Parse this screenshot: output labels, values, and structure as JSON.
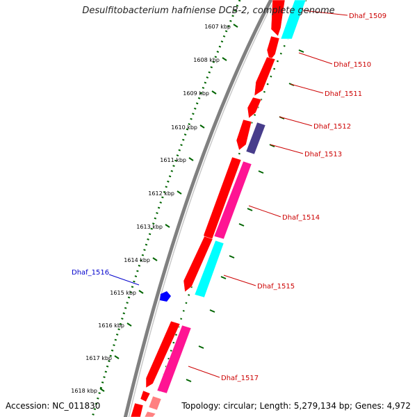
{
  "title": "Desulfitobacterium hafniense DCB-2, complete genome",
  "footer": {
    "accession": "Accession: NC_011830",
    "topology": "Topology: circular; Length: 5,279,134 bp; Genes: 4,972"
  },
  "colors": {
    "backbone": "#808080",
    "ruler": "#006400",
    "gene_red": "#ff0000",
    "gene_cyan": "#00ffff",
    "gene_magenta": "#ff1493",
    "gene_slate": "#483d8b",
    "gene_pink": "#ff8080",
    "gene_blue": "#0000ff",
    "label_red": "#cc0000",
    "label_blue": "#0000cc"
  },
  "ruler_labels": [
    "1607 kbp",
    "1608 kbp",
    "1609 kbp",
    "1610 kbp",
    "1611 kbp",
    "1612 kbp",
    "1613 kbp",
    "1614 kbp",
    "1615 kbp",
    "1616 kbp",
    "1617 kbp",
    "1618 kbp"
  ],
  "gene_labels": [
    {
      "text": "Dhaf_1509",
      "color": "red"
    },
    {
      "text": "Dhaf_1510",
      "color": "red"
    },
    {
      "text": "Dhaf_1511",
      "color": "red"
    },
    {
      "text": "Dhaf_1512",
      "color": "red"
    },
    {
      "text": "Dhaf_1513",
      "color": "red"
    },
    {
      "text": "Dhaf_1514",
      "color": "red"
    },
    {
      "text": "Dhaf_1515",
      "color": "red"
    },
    {
      "text": "Dhaf_1516",
      "color": "blue"
    },
    {
      "text": "Dhaf_1517",
      "color": "red"
    }
  ]
}
